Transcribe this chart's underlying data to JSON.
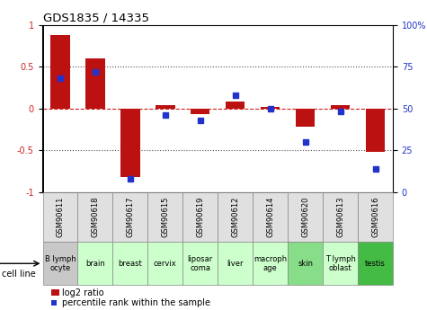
{
  "title": "GDS1835 / 14335",
  "samples": [
    "GSM90611",
    "GSM90618",
    "GSM90617",
    "GSM90615",
    "GSM90619",
    "GSM90612",
    "GSM90614",
    "GSM90620",
    "GSM90613",
    "GSM90616"
  ],
  "cell_lines": [
    "B lymph\nocyte",
    "brain",
    "breast",
    "cervix",
    "liposar\ncoma",
    "liver",
    "macroph\nage",
    "skin",
    "T lymph\noblast",
    "testis"
  ],
  "cell_line_colors": [
    "#c8c8c8",
    "#ccffcc",
    "#ccffcc",
    "#ccffcc",
    "#ccffcc",
    "#ccffcc",
    "#ccffcc",
    "#88dd88",
    "#ccffcc",
    "#44bb44"
  ],
  "log2_ratio": [
    0.88,
    0.6,
    -0.82,
    0.04,
    -0.07,
    0.08,
    0.02,
    -0.22,
    0.04,
    -0.52
  ],
  "percentile_rank": [
    68,
    72,
    8,
    46,
    43,
    58,
    50,
    30,
    48,
    14
  ],
  "bar_color": "#bb1111",
  "dot_color": "#2233cc",
  "hline_color": "#cc2222",
  "dotted_color": "#555555",
  "legend_red_label": "log2 ratio",
  "legend_blue_label": "percentile rank within the sample",
  "cell_line_label": "cell line"
}
